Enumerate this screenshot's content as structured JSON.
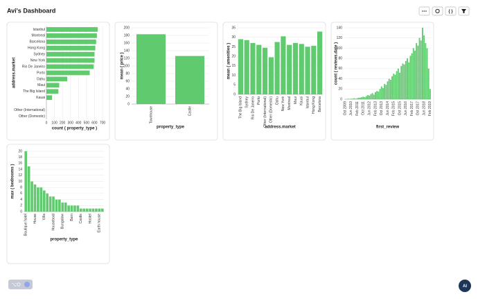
{
  "header": {
    "title": "Avi's Dashboard",
    "shortcut": "⌥O",
    "avatar": "AI"
  },
  "chart_data": [
    {
      "type": "bar",
      "horizontal": true,
      "x_label": "count ( property_type )",
      "y_label": "address.market",
      "categories": [
        "Istanbul",
        "Montreal",
        "Barcelona",
        "Hong Kong",
        "Sydney",
        "New York",
        "Rio De Janeiro",
        "Porto",
        "Oahu",
        "Maui",
        "The Big Island",
        "Kauai",
        null,
        "Other (International)",
        "Other (Domestic)"
      ],
      "values": [
        640,
        630,
        620,
        610,
        600,
        600,
        590,
        540,
        260,
        160,
        150,
        70,
        0,
        0,
        0
      ],
      "color": "#5fcb6e",
      "xlim": [
        0,
        700
      ],
      "xticks": [
        0,
        100,
        200,
        300,
        400,
        500,
        600,
        700
      ],
      "grid": true
    },
    {
      "type": "bar",
      "x_label": "property_type",
      "y_label": "mean ( price )",
      "categories": [
        "Townhouse",
        "Castle"
      ],
      "values": [
        183,
        126
      ],
      "color": "#5fcb6e",
      "ylim": [
        0,
        200
      ],
      "yticks": [
        0,
        20,
        40,
        60,
        80,
        100,
        120,
        140,
        160,
        180,
        200
      ],
      "grid": true
    },
    {
      "type": "bar",
      "x_label": "address.market",
      "y_label": "mean ( amenities )",
      "categories": [
        "The Big Island",
        "Sydney",
        "Rio De Janeiro",
        "Porto",
        "Other (International)",
        "Other (Domestic)",
        "Oahu",
        "New York",
        "Montreal",
        "Maui",
        "Kauai",
        "Istanbul",
        "Hong Kong",
        "Barcelona"
      ],
      "values": [
        29,
        28.5,
        27,
        26,
        24.5,
        19.5,
        27.5,
        30.5,
        26,
        27,
        26.5,
        25,
        25.5,
        33
      ],
      "color": "#5fcb6e",
      "ylim": [
        0,
        35
      ],
      "yticks": [
        0,
        5,
        10,
        15,
        20,
        25,
        30,
        35
      ],
      "grid": true
    },
    {
      "type": "bar",
      "x_label": "first_review",
      "y_label": "count ( reviews.date )",
      "categories": [
        "Oct 2009",
        null,
        null,
        null,
        "Jun 2010",
        null,
        null,
        null,
        "Feb 2011",
        null,
        null,
        null,
        "Oct 2011",
        null,
        null,
        null,
        "Jun 2012",
        null,
        null,
        null,
        "Feb 2013",
        null,
        null,
        null,
        "Oct 2013",
        null,
        null,
        null,
        "Jun 2014",
        null,
        null,
        null,
        "Feb 2015",
        null,
        null,
        null,
        "Oct 2015",
        null,
        null,
        null,
        "Jun 2016",
        null,
        null,
        null,
        "Feb 2017",
        null,
        null,
        null,
        "Oct 2017",
        null,
        null,
        null,
        "Jun 2018",
        null,
        null,
        null,
        "Feb 2019"
      ],
      "values": [
        0,
        0,
        1,
        0,
        1,
        1,
        2,
        1,
        2,
        3,
        3,
        4,
        5,
        4,
        6,
        8,
        7,
        10,
        12,
        9,
        14,
        16,
        15,
        20,
        25,
        22,
        30,
        28,
        35,
        40,
        38,
        45,
        50,
        48,
        55,
        60,
        52,
        65,
        70,
        68,
        75,
        80,
        72,
        85,
        90,
        100,
        95,
        110,
        105,
        120,
        115,
        140,
        125,
        110,
        100,
        60,
        20
      ],
      "color": "#5fcb6e",
      "ylim": [
        0,
        140
      ],
      "yticks": [
        0,
        20,
        40,
        60,
        80,
        100,
        120,
        140
      ],
      "grid": true
    },
    {
      "type": "bar",
      "x_label": "property_type",
      "y_label": "max ( bedrooms )",
      "categories": [
        "Boutique hotel",
        null,
        null,
        "House",
        null,
        null,
        "Villa",
        null,
        null,
        "Houseboat",
        null,
        null,
        "Bungalow",
        null,
        null,
        "Barn",
        null,
        null,
        "Castle",
        null,
        null,
        "Hostel",
        null,
        null,
        "Earth house",
        null
      ],
      "values": [
        20,
        15,
        10,
        9,
        8,
        8,
        7,
        6,
        5,
        5,
        4,
        4,
        3,
        3,
        2,
        2,
        2,
        2,
        1,
        1,
        1,
        1,
        1,
        1,
        1,
        1
      ],
      "color": "#5fcb6e",
      "ylim": [
        0,
        20
      ],
      "yticks": [
        0,
        2,
        4,
        6,
        8,
        10,
        12,
        14,
        16,
        18,
        20
      ],
      "grid": true
    }
  ]
}
